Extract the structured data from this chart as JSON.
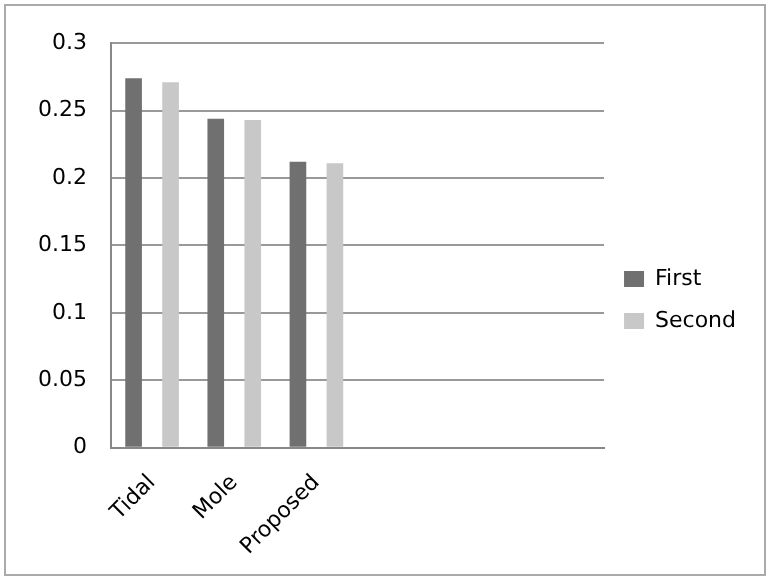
{
  "chart_data": {
    "type": "bar",
    "categories": [
      "Tidal",
      "Mole",
      "Proposed",
      null,
      null,
      null
    ],
    "series": [
      {
        "name": "First",
        "color": "#707070",
        "values": [
          0.274,
          0.244,
          0.212,
          null,
          null,
          null
        ]
      },
      {
        "name": "Second",
        "color": "#c8c8c8",
        "values": [
          0.271,
          0.243,
          0.211,
          null,
          null,
          null
        ]
      }
    ],
    "ylim": [
      0,
      0.3
    ],
    "yticks": [
      0,
      0.05,
      0.1,
      0.15,
      0.2,
      0.25,
      0.3
    ],
    "grid": "y",
    "legend": "right"
  }
}
